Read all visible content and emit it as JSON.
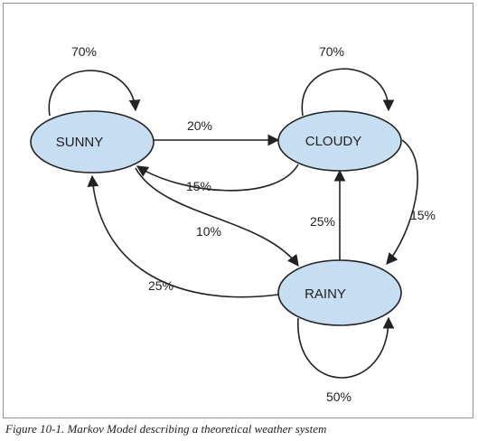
{
  "diagram": {
    "states": [
      {
        "id": "sunny",
        "label": "SUNNY"
      },
      {
        "id": "cloudy",
        "label": "CLOUDY"
      },
      {
        "id": "rainy",
        "label": "RAINY"
      }
    ],
    "transitions": [
      {
        "from": "sunny",
        "to": "sunny",
        "label": "70%"
      },
      {
        "from": "sunny",
        "to": "cloudy",
        "label": "20%"
      },
      {
        "from": "cloudy",
        "to": "sunny",
        "label": "15%"
      },
      {
        "from": "sunny",
        "to": "rainy",
        "label": "10%"
      },
      {
        "from": "rainy",
        "to": "sunny",
        "label": "25%"
      },
      {
        "from": "cloudy",
        "to": "cloudy",
        "label": "70%"
      },
      {
        "from": "rainy",
        "to": "cloudy",
        "label": "25%"
      },
      {
        "from": "cloudy",
        "to": "rainy",
        "label": "15%"
      },
      {
        "from": "rainy",
        "to": "rainy",
        "label": "50%"
      }
    ],
    "colors": {
      "node_fill": "#c6ddf2",
      "stroke": "#222222"
    }
  },
  "caption": "Figure 10-1. Markov Model describing a theoretical weather system"
}
